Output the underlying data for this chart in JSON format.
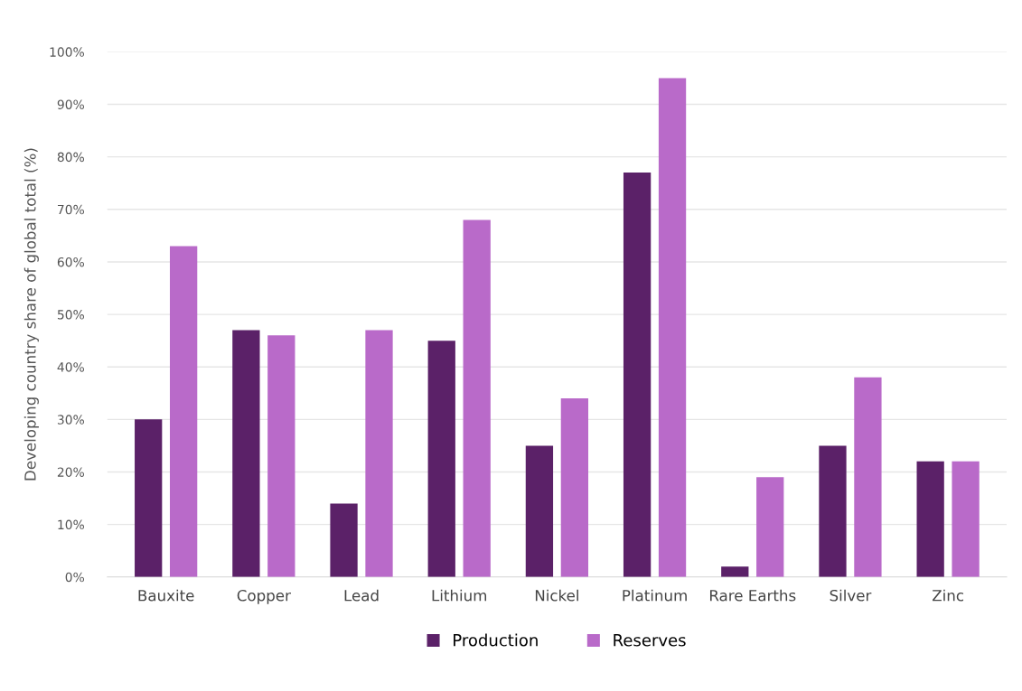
{
  "chart_data": {
    "type": "bar",
    "ylabel": "Developing country share of global total (%)",
    "categories": [
      "Bauxite",
      "Copper",
      "Lead",
      "Lithium",
      "Nickel",
      "Platinum",
      "Rare Earths",
      "Silver",
      "Zinc"
    ],
    "series": [
      {
        "name": "Production",
        "color": "#5b2168",
        "values": [
          30,
          47,
          14,
          45,
          25,
          77,
          2,
          25,
          22
        ]
      },
      {
        "name": "Reserves",
        "color": "#b96ac9",
        "values": [
          63,
          46,
          47,
          68,
          34,
          95,
          19,
          38,
          22
        ]
      }
    ],
    "ylim": [
      0,
      100
    ],
    "yticks": [
      {
        "value": 0,
        "label": "0%"
      },
      {
        "value": 10,
        "label": "10%"
      },
      {
        "value": 20,
        "label": "20%"
      },
      {
        "value": 30,
        "label": "30%"
      },
      {
        "value": 40,
        "label": "40%"
      },
      {
        "value": 50,
        "label": "50%"
      },
      {
        "value": 60,
        "label": "60%"
      },
      {
        "value": 70,
        "label": "70%"
      },
      {
        "value": 80,
        "label": "80%"
      },
      {
        "value": 90,
        "label": "90%"
      },
      {
        "value": 100,
        "label": "100%"
      }
    ],
    "grid": "y",
    "legend": "bottom"
  }
}
